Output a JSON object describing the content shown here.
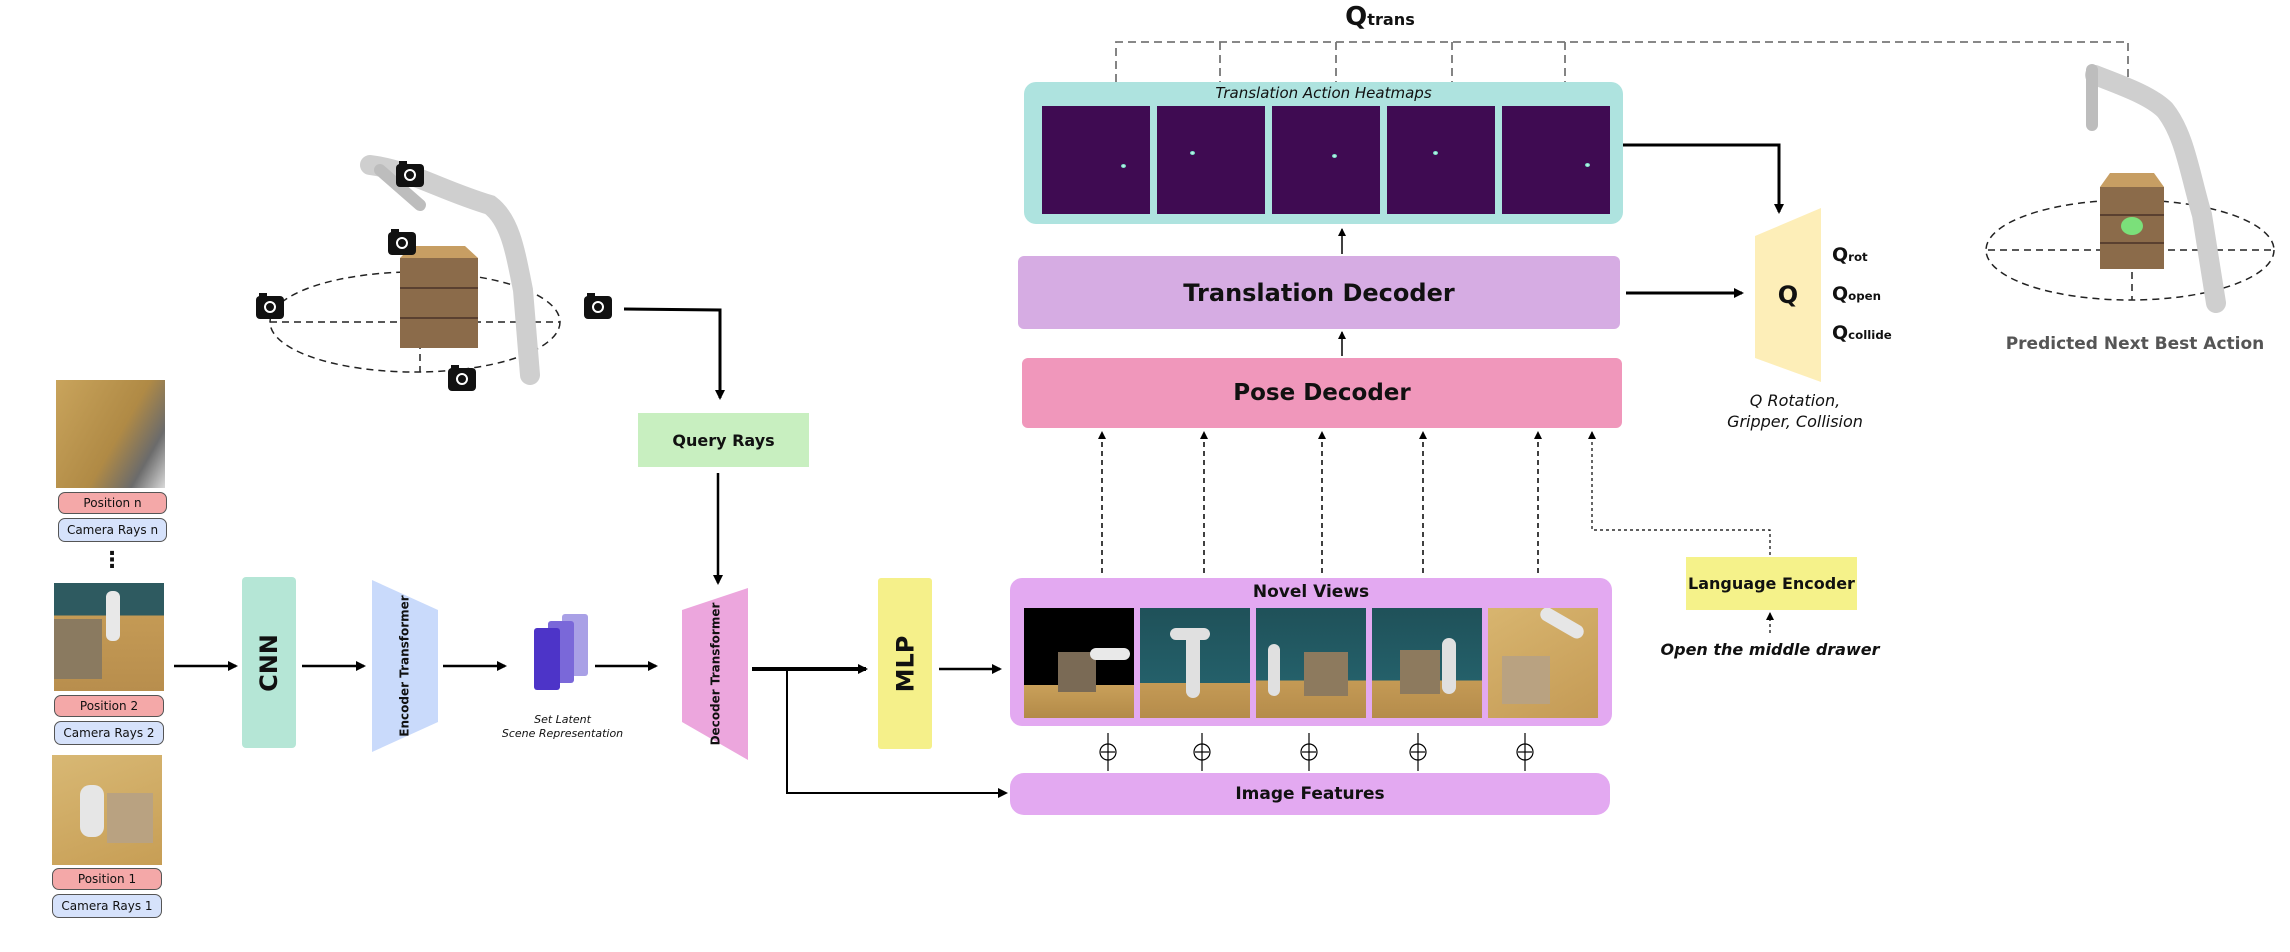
{
  "inputs": {
    "position_n": "Position n",
    "camera_rays_n": "Camera Rays n",
    "ellipsis": "⋮",
    "position_2": "Position 2",
    "camera_rays_2": "Camera Rays 2",
    "position_1": "Position 1",
    "camera_rays_1": "Camera Rays 1"
  },
  "pipeline": {
    "cnn": "CNN",
    "encoder_transformer": "Encoder Transformer",
    "latent_caption_1": "Set Latent",
    "latent_caption_2": "Scene Representation",
    "query_rays": "Query Rays",
    "decoder_transformer": "Decoder Transformer",
    "mlp": "MLP"
  },
  "views": {
    "novel_views": "Novel Views",
    "image_features": "Image Features"
  },
  "decoders": {
    "pose_decoder": "Pose Decoder",
    "translation_decoder": "Translation Decoder",
    "heatmaps_title": "Translation Action Heatmaps"
  },
  "q_head": {
    "q_trans_base": "Q",
    "q_trans_sub": "trans",
    "q_label": "Q",
    "q_rot_base": "Q",
    "q_rot_sub": "rot",
    "q_open_base": "Q",
    "q_open_sub": "open",
    "q_collide_base": "Q",
    "q_collide_sub": "collide",
    "caption_1": "Q Rotation,",
    "caption_2": "Gripper, Collision"
  },
  "language": {
    "encoder": "Language Encoder",
    "instruction": "Open the middle drawer"
  },
  "output": {
    "predicted": "Predicted Next Best Action"
  },
  "colors": {
    "cnn": "#b5e6d6",
    "encoder": "#c9dafb",
    "query": "#c8efc0",
    "decoder": "#eca6dd",
    "mlp": "#f5f08a",
    "views_panel": "#e3a9f1",
    "pose": "#f097bb",
    "translation": "#d6ace3",
    "heatmap_panel": "#aee3df",
    "q": "#fdeeb8",
    "language": "#f5f28a"
  }
}
